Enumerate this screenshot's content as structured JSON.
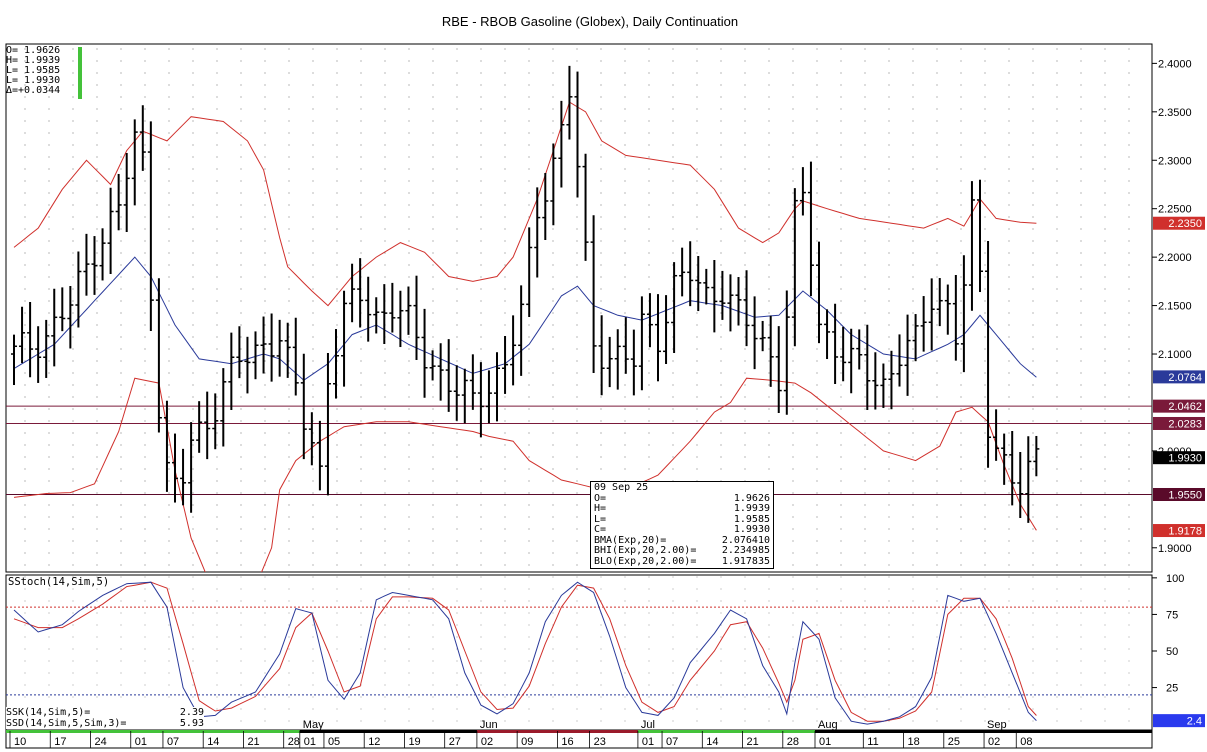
{
  "title": "RBE - RBOB Gasoline (Globex), Daily Continuation",
  "ohlc_box": {
    "lines": [
      "O= 1.9626",
      "H= 1.9939",
      "L= 1.9585",
      "L= 1.9930",
      "Δ=+0.0344"
    ],
    "colors": {
      "bar": "#44c23a"
    }
  },
  "info_box": {
    "date": "09 Sep 25",
    "rows": [
      {
        "label": "O=",
        "value": "1.9626"
      },
      {
        "label": "H=",
        "value": "1.9939"
      },
      {
        "label": "L=",
        "value": "1.9585"
      },
      {
        "label": "C=",
        "value": "1.9930"
      },
      {
        "label": "BMA(Exp,20)=",
        "value": "2.076410"
      },
      {
        "label": "BHI(Exp,20,2.00)=",
        "value": "2.234985"
      },
      {
        "label": "BLO(Exp,20,2.00)=",
        "value": "1.917835"
      }
    ]
  },
  "stoch_panel": {
    "label": "SStoch(14,Sim,5)",
    "rows": [
      {
        "label": "SSK(14,Sim,5)=",
        "value": "2.39"
      },
      {
        "label": "SSD(14,Sim,5,Sim,3)=",
        "value": "5.93"
      }
    ]
  },
  "colors": {
    "red": "#d0302c",
    "blue": "#2a3a9a",
    "maroon": "#7a1a3a",
    "green": "#44c23a"
  },
  "chart_data": {
    "type": "line",
    "title": "RBE - RBOB Gasoline (Globex), Daily Continuation",
    "price_axis": {
      "ticks": [
        "2.4000",
        "2.3500",
        "2.3000",
        "2.2500",
        "2.2000",
        "2.1500",
        "2.1000",
        "2.0000",
        "1.9000"
      ],
      "tick_values": [
        2.4,
        2.35,
        2.3,
        2.25,
        2.2,
        2.15,
        2.1,
        2.0,
        1.9
      ],
      "ylim": [
        1.875,
        2.42
      ]
    },
    "stoch_axis": {
      "ticks": [
        "100",
        "75",
        "50",
        "25"
      ],
      "tick_values": [
        100,
        75,
        50,
        25
      ],
      "ylim": [
        -4,
        104
      ]
    },
    "x_labels": {
      "days": [
        "10",
        "17",
        "24",
        "01",
        "07",
        "14",
        "21",
        "28",
        "01",
        "05",
        "12",
        "19",
        "27",
        "02",
        "09",
        "16",
        "23",
        "01",
        "07",
        "14",
        "21",
        "28",
        "01",
        "11",
        "18",
        "25",
        "02",
        "08"
      ],
      "day_index": [
        0,
        5,
        10,
        15,
        19,
        24,
        29,
        34,
        36,
        39,
        44,
        49,
        54,
        58,
        63,
        68,
        72,
        78,
        81,
        86,
        91,
        96,
        100,
        106,
        111,
        116,
        121,
        125
      ],
      "months": [
        "May",
        "Jun",
        "Jul",
        "Aug",
        "Sep"
      ],
      "month_index": [
        36,
        58,
        78,
        100,
        121
      ]
    },
    "horizontal_levels": [
      {
        "value": 2.0462,
        "label": "2.0462",
        "color": "#7a1a3a"
      },
      {
        "value": 2.0283,
        "label": "2.0283",
        "color": "#7a1a3a"
      },
      {
        "value": 1.955,
        "label": "1.9550",
        "color": "#5a0a2a"
      }
    ],
    "last_value_tags": [
      {
        "value": 2.235,
        "label": "2.2350",
        "color": "#d0302c"
      },
      {
        "value": 2.0764,
        "label": "2.0764",
        "color": "#2a3a9a"
      },
      {
        "value": 1.993,
        "label": "1.9930",
        "color": "#000000"
      },
      {
        "value": 1.9178,
        "label": "1.9178",
        "color": "#d0302c"
      }
    ],
    "stoch_tags": [
      {
        "value": 2.4,
        "label": "2.4",
        "color": "#2a3aee"
      }
    ],
    "stoch_levels": [
      80,
      20
    ],
    "close_anchors": [
      [
        0,
        2.1
      ],
      [
        4,
        2.12
      ],
      [
        7,
        2.15
      ],
      [
        10,
        2.21
      ],
      [
        13,
        2.25
      ],
      [
        15,
        2.32
      ],
      [
        16,
        2.3
      ],
      [
        17,
        2.17
      ],
      [
        18,
        2.05
      ],
      [
        19,
        1.98
      ],
      [
        20,
        1.96
      ],
      [
        21,
        1.97
      ],
      [
        22,
        2.01
      ],
      [
        24,
        2.03
      ],
      [
        26,
        2.07
      ],
      [
        28,
        2.09
      ],
      [
        31,
        2.11
      ],
      [
        33,
        2.12
      ],
      [
        35,
        2.06
      ],
      [
        36,
        2.03
      ],
      [
        37,
        2.01
      ],
      [
        38,
        1.98
      ],
      [
        39,
        2.08
      ],
      [
        41,
        2.14
      ],
      [
        43,
        2.16
      ],
      [
        45,
        2.14
      ],
      [
        47,
        2.15
      ],
      [
        49,
        2.13
      ],
      [
        51,
        2.1
      ],
      [
        53,
        2.08
      ],
      [
        55,
        2.06
      ],
      [
        57,
        2.05
      ],
      [
        59,
        2.07
      ],
      [
        61,
        2.09
      ],
      [
        63,
        2.14
      ],
      [
        65,
        2.25
      ],
      [
        67,
        2.3
      ],
      [
        68,
        2.33
      ],
      [
        69,
        2.37
      ],
      [
        70,
        2.29
      ],
      [
        71,
        2.2
      ],
      [
        72,
        2.11
      ],
      [
        74,
        2.1
      ],
      [
        77,
        2.09
      ],
      [
        78,
        2.13
      ],
      [
        80,
        2.12
      ],
      [
        82,
        2.17
      ],
      [
        84,
        2.18
      ],
      [
        86,
        2.16
      ],
      [
        88,
        2.17
      ],
      [
        90,
        2.14
      ],
      [
        92,
        2.12
      ],
      [
        94,
        2.1
      ],
      [
        95,
        2.08
      ],
      [
        96,
        2.14
      ],
      [
        97,
        2.24
      ],
      [
        98,
        2.26
      ],
      [
        99,
        2.2
      ],
      [
        100,
        2.13
      ],
      [
        102,
        2.11
      ],
      [
        104,
        2.09
      ],
      [
        106,
        2.08
      ],
      [
        108,
        2.07
      ],
      [
        110,
        2.1
      ],
      [
        112,
        2.11
      ],
      [
        114,
        2.16
      ],
      [
        116,
        2.15
      ],
      [
        117,
        2.12
      ],
      [
        118,
        2.17
      ],
      [
        119,
        2.24
      ],
      [
        120,
        2.18
      ],
      [
        121,
        2.03
      ],
      [
        122,
        2.01
      ],
      [
        123,
        1.99
      ],
      [
        124,
        1.97
      ],
      [
        125,
        1.96
      ],
      [
        127,
        1.99
      ]
    ],
    "bma_anchors": [
      [
        0,
        2.085
      ],
      [
        5,
        2.11
      ],
      [
        10,
        2.155
      ],
      [
        15,
        2.2
      ],
      [
        17,
        2.18
      ],
      [
        20,
        2.13
      ],
      [
        23,
        2.095
      ],
      [
        27,
        2.09
      ],
      [
        31,
        2.1
      ],
      [
        33,
        2.095
      ],
      [
        36,
        2.073
      ],
      [
        39,
        2.09
      ],
      [
        42,
        2.12
      ],
      [
        45,
        2.13
      ],
      [
        49,
        2.11
      ],
      [
        53,
        2.095
      ],
      [
        57,
        2.08
      ],
      [
        61,
        2.09
      ],
      [
        64,
        2.11
      ],
      [
        68,
        2.16
      ],
      [
        70,
        2.17
      ],
      [
        72,
        2.15
      ],
      [
        75,
        2.14
      ],
      [
        78,
        2.135
      ],
      [
        81,
        2.145
      ],
      [
        84,
        2.155
      ],
      [
        88,
        2.15
      ],
      [
        92,
        2.138
      ],
      [
        95,
        2.14
      ],
      [
        98,
        2.165
      ],
      [
        101,
        2.145
      ],
      [
        104,
        2.12
      ],
      [
        108,
        2.1
      ],
      [
        112,
        2.095
      ],
      [
        116,
        2.11
      ],
      [
        118,
        2.12
      ],
      [
        120,
        2.14
      ],
      [
        122,
        2.12
      ],
      [
        125,
        2.09
      ],
      [
        127,
        2.076
      ]
    ],
    "bhi_anchors": [
      [
        0,
        2.21
      ],
      [
        3,
        2.23
      ],
      [
        6,
        2.27
      ],
      [
        9,
        2.3
      ],
      [
        12,
        2.275
      ],
      [
        14,
        2.31
      ],
      [
        16,
        2.33
      ],
      [
        19,
        2.32
      ],
      [
        22,
        2.345
      ],
      [
        26,
        2.34
      ],
      [
        29,
        2.32
      ],
      [
        31,
        2.29
      ],
      [
        33,
        2.22
      ],
      [
        34,
        2.19
      ],
      [
        37,
        2.165
      ],
      [
        39,
        2.15
      ],
      [
        42,
        2.18
      ],
      [
        45,
        2.2
      ],
      [
        48,
        2.215
      ],
      [
        51,
        2.205
      ],
      [
        54,
        2.18
      ],
      [
        57,
        2.175
      ],
      [
        60,
        2.18
      ],
      [
        62,
        2.2
      ],
      [
        65,
        2.26
      ],
      [
        67,
        2.31
      ],
      [
        69,
        2.36
      ],
      [
        71,
        2.35
      ],
      [
        73,
        2.32
      ],
      [
        76,
        2.305
      ],
      [
        80,
        2.3
      ],
      [
        84,
        2.295
      ],
      [
        87,
        2.27
      ],
      [
        90,
        2.23
      ],
      [
        93,
        2.215
      ],
      [
        95,
        2.225
      ],
      [
        97,
        2.25
      ],
      [
        98,
        2.258
      ],
      [
        101,
        2.25
      ],
      [
        105,
        2.24
      ],
      [
        109,
        2.235
      ],
      [
        113,
        2.23
      ],
      [
        116,
        2.24
      ],
      [
        118,
        2.232
      ],
      [
        120,
        2.26
      ],
      [
        122,
        2.24
      ],
      [
        125,
        2.236
      ],
      [
        127,
        2.235
      ]
    ],
    "blo_anchors": [
      [
        0,
        1.952
      ],
      [
        4,
        1.956
      ],
      [
        7,
        1.957
      ],
      [
        10,
        1.966
      ],
      [
        13,
        2.02
      ],
      [
        15,
        2.075
      ],
      [
        18,
        2.07
      ],
      [
        20,
        1.98
      ],
      [
        22,
        1.91
      ],
      [
        24,
        1.87
      ],
      [
        27,
        1.85
      ],
      [
        30,
        1.86
      ],
      [
        32,
        1.9
      ],
      [
        33,
        1.96
      ],
      [
        35,
        1.99
      ],
      [
        38,
        2.01
      ],
      [
        41,
        2.025
      ],
      [
        45,
        2.03
      ],
      [
        49,
        2.03
      ],
      [
        53,
        2.025
      ],
      [
        57,
        2.02
      ],
      [
        59,
        2.015
      ],
      [
        62,
        2.01
      ],
      [
        64,
        1.99
      ],
      [
        66,
        1.98
      ],
      [
        68,
        1.97
      ],
      [
        72,
        1.962
      ],
      [
        76,
        1.96
      ],
      [
        80,
        1.975
      ],
      [
        84,
        2.01
      ],
      [
        87,
        2.04
      ],
      [
        89,
        2.05
      ],
      [
        91,
        2.075
      ],
      [
        94,
        2.073
      ],
      [
        97,
        2.07
      ],
      [
        99,
        2.06
      ],
      [
        102,
        2.04
      ],
      [
        105,
        2.02
      ],
      [
        108,
        2.0
      ],
      [
        112,
        1.99
      ],
      [
        115,
        2.005
      ],
      [
        117,
        2.04
      ],
      [
        119,
        2.045
      ],
      [
        121,
        2.03
      ],
      [
        123,
        1.985
      ],
      [
        125,
        1.945
      ],
      [
        127,
        1.918
      ]
    ],
    "ssk_anchors": [
      [
        0,
        78
      ],
      [
        3,
        63
      ],
      [
        6,
        68
      ],
      [
        8,
        77
      ],
      [
        11,
        88
      ],
      [
        14,
        96
      ],
      [
        17,
        97
      ],
      [
        19,
        80
      ],
      [
        21,
        25
      ],
      [
        23,
        5
      ],
      [
        25,
        6
      ],
      [
        27,
        15
      ],
      [
        30,
        22
      ],
      [
        33,
        48
      ],
      [
        35,
        79
      ],
      [
        37,
        76
      ],
      [
        39,
        30
      ],
      [
        41,
        17
      ],
      [
        43,
        35
      ],
      [
        45,
        85
      ],
      [
        47,
        90
      ],
      [
        49,
        88
      ],
      [
        52,
        85
      ],
      [
        54,
        72
      ],
      [
        56,
        35
      ],
      [
        58,
        13
      ],
      [
        60,
        7
      ],
      [
        62,
        14
      ],
      [
        64,
        35
      ],
      [
        66,
        70
      ],
      [
        68,
        88
      ],
      [
        70,
        97
      ],
      [
        72,
        90
      ],
      [
        74,
        60
      ],
      [
        76,
        25
      ],
      [
        78,
        8
      ],
      [
        80,
        6
      ],
      [
        82,
        18
      ],
      [
        84,
        42
      ],
      [
        87,
        62
      ],
      [
        89,
        78
      ],
      [
        91,
        72
      ],
      [
        93,
        40
      ],
      [
        95,
        22
      ],
      [
        96,
        7
      ],
      [
        97,
        42
      ],
      [
        98,
        70
      ],
      [
        100,
        58
      ],
      [
        102,
        18
      ],
      [
        104,
        2
      ],
      [
        106,
        0
      ],
      [
        108,
        2
      ],
      [
        110,
        5
      ],
      [
        112,
        12
      ],
      [
        114,
        32
      ],
      [
        116,
        88
      ],
      [
        118,
        84
      ],
      [
        120,
        86
      ],
      [
        122,
        62
      ],
      [
        124,
        35
      ],
      [
        126,
        8
      ],
      [
        127,
        2.4
      ]
    ],
    "ssd_anchors": [
      [
        0,
        72
      ],
      [
        3,
        66
      ],
      [
        6,
        66
      ],
      [
        8,
        72
      ],
      [
        11,
        82
      ],
      [
        14,
        94
      ],
      [
        17,
        97
      ],
      [
        19,
        93
      ],
      [
        21,
        55
      ],
      [
        23,
        16
      ],
      [
        25,
        9
      ],
      [
        27,
        11
      ],
      [
        30,
        19
      ],
      [
        33,
        38
      ],
      [
        35,
        66
      ],
      [
        37,
        76
      ],
      [
        39,
        50
      ],
      [
        41,
        22
      ],
      [
        43,
        26
      ],
      [
        45,
        72
      ],
      [
        47,
        87
      ],
      [
        49,
        87
      ],
      [
        52,
        86
      ],
      [
        54,
        78
      ],
      [
        56,
        50
      ],
      [
        58,
        22
      ],
      [
        60,
        10
      ],
      [
        62,
        11
      ],
      [
        64,
        26
      ],
      [
        66,
        55
      ],
      [
        68,
        80
      ],
      [
        70,
        95
      ],
      [
        72,
        93
      ],
      [
        74,
        72
      ],
      [
        76,
        40
      ],
      [
        78,
        15
      ],
      [
        80,
        8
      ],
      [
        82,
        12
      ],
      [
        84,
        30
      ],
      [
        87,
        50
      ],
      [
        89,
        68
      ],
      [
        91,
        70
      ],
      [
        93,
        52
      ],
      [
        95,
        28
      ],
      [
        96,
        15
      ],
      [
        97,
        30
      ],
      [
        98,
        58
      ],
      [
        100,
        62
      ],
      [
        102,
        30
      ],
      [
        104,
        8
      ],
      [
        106,
        2
      ],
      [
        108,
        2
      ],
      [
        110,
        4
      ],
      [
        112,
        9
      ],
      [
        114,
        22
      ],
      [
        116,
        75
      ],
      [
        118,
        86
      ],
      [
        120,
        86
      ],
      [
        122,
        72
      ],
      [
        124,
        45
      ],
      [
        126,
        12
      ],
      [
        127,
        5.93
      ]
    ]
  }
}
